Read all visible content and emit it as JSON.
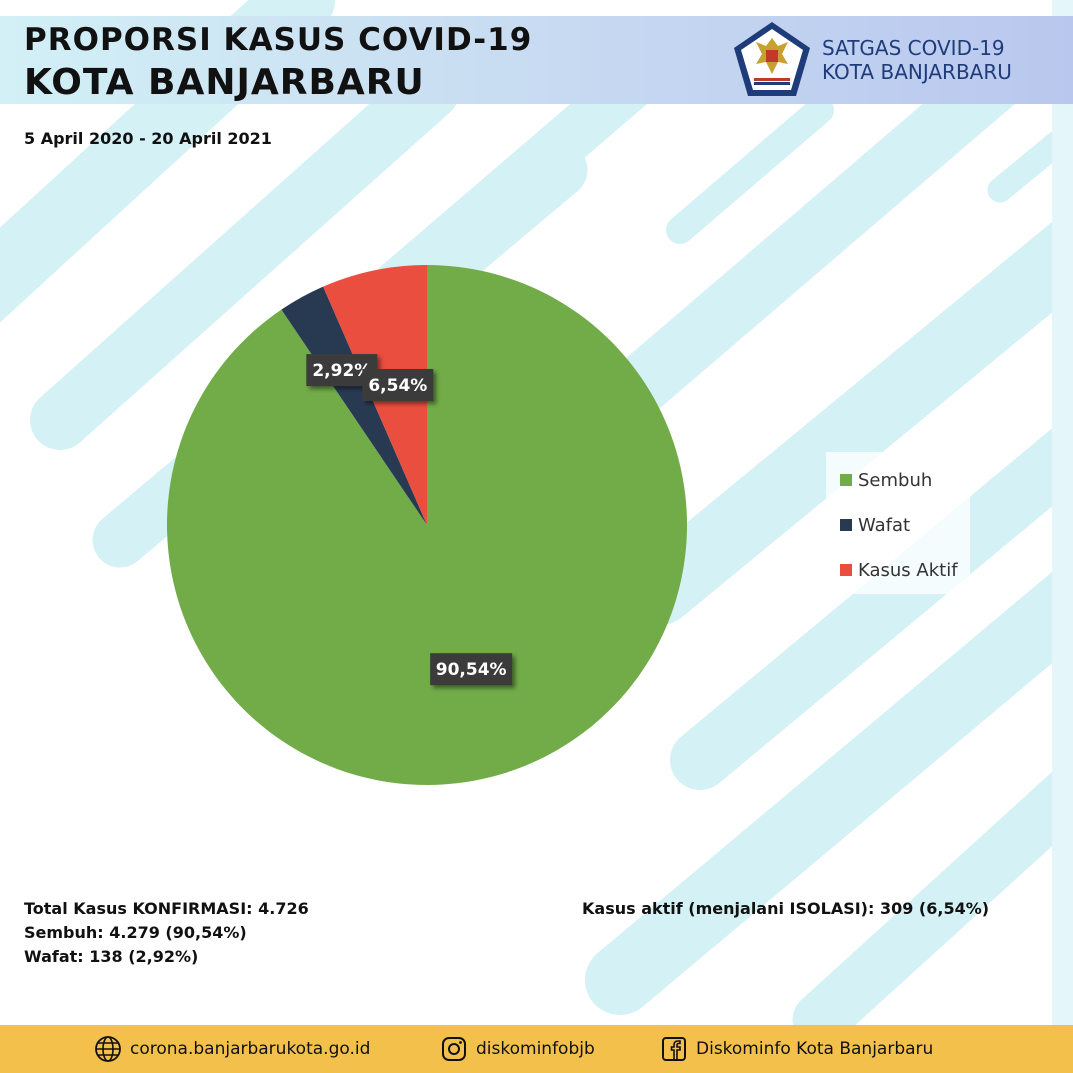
{
  "header": {
    "title_line1": "PROPORSI KASUS COVID-19",
    "title_line2": "KOTA BANJARBARU",
    "brand_line1": "SATGAS COVID-19",
    "brand_line2": "KOTA BANJARBARU",
    "date_range": "5 April 2020 - 20 April 2021"
  },
  "chart_data": {
    "type": "pie",
    "title": "",
    "start_angle_deg": 0,
    "direction": "clockwise",
    "slices": [
      {
        "label": "Sembuh",
        "value": 90.54,
        "display": "90,54%",
        "color": "#71ac48"
      },
      {
        "label": "Wafat",
        "value": 2.92,
        "display": "2,92%",
        "color": "#283a52"
      },
      {
        "label": "Kasus Aktif",
        "value": 6.54,
        "display": "6,54%",
        "color": "#e94e3f"
      }
    ],
    "legend": {
      "position": "right"
    }
  },
  "stats": {
    "total": "Total Kasus KONFIRMASI: 4.726",
    "sembuh": "Sembuh: 4.279 (90,54%)",
    "wafat": "Wafat: 138 (2,92%)",
    "aktif": "Kasus aktif (menjalani ISOLASI): 309 (6,54%)"
  },
  "footer": {
    "website": "corona.banjarbarukota.go.id",
    "instagram": "diskominfobjb",
    "facebook": "Diskominfo Kota Banjarbaru",
    "bar_color": "#f4c04c"
  },
  "icons": [
    "globe-icon",
    "instagram-icon",
    "facebook-icon",
    "garuda-emblem-icon"
  ]
}
